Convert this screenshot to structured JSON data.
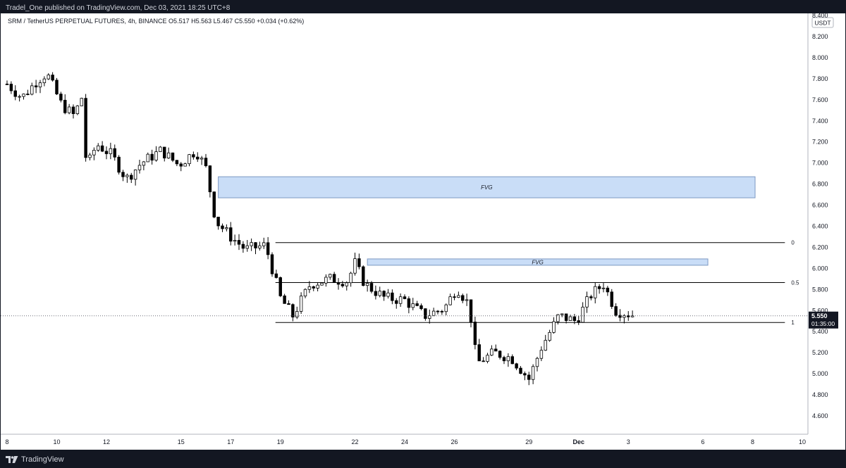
{
  "header": {
    "published": "Tradel_One published on TradingView.com, Dec 03, 2021 18:25 UTC+8"
  },
  "footer": {
    "brand": "TradingView",
    "logo_icon": "tradingview-logo-icon"
  },
  "colors": {
    "candle_up_body": "#ffffff",
    "candle_down_body": "#000000",
    "candle_outline": "#000000",
    "fvg_fill": "#c9ddf7",
    "fvg_border": "#7c98c2",
    "level_line": "#000000",
    "price_label_bg": "#131722",
    "price_label_text": "#ffffff"
  },
  "chart_data": {
    "type": "candlestick",
    "legend": "SRM / TetherUS PERPETUAL FUTURES, 4h, BINANCE  O5.517  H5.563  L5.467  C5.550  +0.034 (+0.62%)",
    "currency": "USDT",
    "ylim": [
      4.4,
      8.45
    ],
    "y_ticks": [
      8.4,
      8.2,
      8.0,
      7.8,
      7.6,
      7.4,
      7.2,
      7.0,
      6.8,
      6.6,
      6.4,
      6.2,
      6.0,
      5.8,
      5.6,
      5.4,
      5.2,
      5.0,
      4.8,
      4.6
    ],
    "y_tick_labels": [
      "8.400",
      "8.200",
      "8.000",
      "7.800",
      "7.600",
      "7.400",
      "7.200",
      "7.000",
      "6.800",
      "6.600",
      "6.400",
      "6.200",
      "6.000",
      "5.800",
      "5.600",
      "5.400",
      "5.200",
      "5.000",
      "4.800",
      "4.600"
    ],
    "x_ticks": [
      {
        "label": "8",
        "day": 8
      },
      {
        "label": "10",
        "day": 10
      },
      {
        "label": "12",
        "day": 12
      },
      {
        "label": "15",
        "day": 15
      },
      {
        "label": "17",
        "day": 17
      },
      {
        "label": "19",
        "day": 19
      },
      {
        "label": "22",
        "day": 22
      },
      {
        "label": "24",
        "day": 24
      },
      {
        "label": "26",
        "day": 26
      },
      {
        "label": "29",
        "day": 29
      },
      {
        "label": "Dec",
        "day": 31
      },
      {
        "label": "3",
        "day": 33
      },
      {
        "label": "6",
        "day": 36
      },
      {
        "label": "8",
        "day": 38
      },
      {
        "label": "10",
        "day": 40
      }
    ],
    "candle_path": [
      {
        "day": 8.0,
        "price": 7.75
      },
      {
        "day": 8.6,
        "price": 7.62
      },
      {
        "day": 9.2,
        "price": 7.78
      },
      {
        "day": 9.6,
        "price": 7.85
      },
      {
        "day": 10.2,
        "price": 7.55
      },
      {
        "day": 10.7,
        "price": 7.45
      },
      {
        "day": 11.0,
        "price": 7.62
      },
      {
        "day": 11.2,
        "price": 6.95
      },
      {
        "day": 11.6,
        "price": 7.18
      },
      {
        "day": 12.2,
        "price": 7.08
      },
      {
        "day": 12.8,
        "price": 6.85
      },
      {
        "day": 13.4,
        "price": 7.0
      },
      {
        "day": 14.2,
        "price": 7.12
      },
      {
        "day": 14.9,
        "price": 6.98
      },
      {
        "day": 15.6,
        "price": 7.12
      },
      {
        "day": 16.0,
        "price": 6.95
      },
      {
        "day": 16.4,
        "price": 6.45
      },
      {
        "day": 17.0,
        "price": 6.3
      },
      {
        "day": 17.6,
        "price": 6.18
      },
      {
        "day": 18.4,
        "price": 6.22
      },
      {
        "day": 19.0,
        "price": 5.72
      },
      {
        "day": 19.5,
        "price": 5.55
      },
      {
        "day": 20.2,
        "price": 5.85
      },
      {
        "day": 21.0,
        "price": 5.9
      },
      {
        "day": 21.7,
        "price": 5.88
      },
      {
        "day": 22.0,
        "price": 6.05
      },
      {
        "day": 22.4,
        "price": 5.85
      },
      {
        "day": 23.2,
        "price": 5.72
      },
      {
        "day": 24.0,
        "price": 5.7
      },
      {
        "day": 24.8,
        "price": 5.55
      },
      {
        "day": 25.6,
        "price": 5.62
      },
      {
        "day": 26.1,
        "price": 5.82
      },
      {
        "day": 26.6,
        "price": 5.65
      },
      {
        "day": 26.9,
        "price": 5.1
      },
      {
        "day": 27.6,
        "price": 5.2
      },
      {
        "day": 28.3,
        "price": 5.15
      },
      {
        "day": 29.0,
        "price": 4.95
      },
      {
        "day": 29.5,
        "price": 5.25
      },
      {
        "day": 30.2,
        "price": 5.55
      },
      {
        "day": 30.9,
        "price": 5.5
      },
      {
        "day": 31.5,
        "price": 5.75
      },
      {
        "day": 32.0,
        "price": 5.85
      },
      {
        "day": 32.5,
        "price": 5.6
      },
      {
        "day": 33.3,
        "price": 5.55
      }
    ],
    "annotations": [
      {
        "type": "fvg",
        "label": "FVG",
        "day_start": 16.5,
        "day_end": 38.1,
        "price_low": 6.67,
        "price_high": 6.87
      },
      {
        "type": "fvg",
        "label": "FVG",
        "day_start": 22.5,
        "day_end": 36.2,
        "price_low": 6.03,
        "price_high": 6.09
      }
    ],
    "fib_levels": [
      {
        "label": "0",
        "price": 6.245,
        "day_start": 18.8
      },
      {
        "label": "0.5",
        "price": 5.866,
        "day_start": 18.8
      },
      {
        "label": "1",
        "price": 5.487,
        "day_start": 18.8
      }
    ],
    "fib_day_end": 39.3,
    "last_price": {
      "price": 5.55,
      "label": "5.550",
      "countdown": "01:35:00"
    }
  }
}
